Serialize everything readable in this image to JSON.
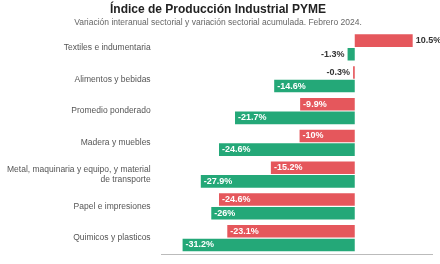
{
  "chart_data": {
    "type": "bar",
    "orientation": "horizontal",
    "title": "Índice de Producción Industrial PYME",
    "subtitle": "Variación interanual sectorial y variación sectorial acumulada. Febrero 2024.",
    "categories": [
      "Textiles e indumentaria",
      "Alimentos y bebidas",
      "Promedio ponderado",
      "Madera y muebles",
      "Metal, maquinaria y equipo, y material de transporte",
      "Papel e impresiones",
      "Quimicos y plasticos"
    ],
    "series": [
      {
        "color": "#e5575c",
        "values": [
          10.5,
          -0.3,
          -9.9,
          -10,
          -15.2,
          -24.6,
          -23.1
        ],
        "value_labels": [
          "10.5%",
          "-0.3%",
          "-9.9%",
          "-10%",
          "-15.2%",
          "-24.6%",
          "-23.1%"
        ]
      },
      {
        "color": "#24a878",
        "values": [
          -1.3,
          -14.6,
          -21.7,
          -24.6,
          -27.9,
          -26,
          -31.2
        ],
        "value_labels": [
          "-1.3%",
          "-14.6%",
          "-21.7%",
          "-24.6%",
          "-27.9%",
          "-26%",
          "-31.2%"
        ]
      }
    ],
    "xlim": [
      -35,
      14
    ],
    "grid": false,
    "data_labels": true,
    "tick_labels": "y"
  }
}
